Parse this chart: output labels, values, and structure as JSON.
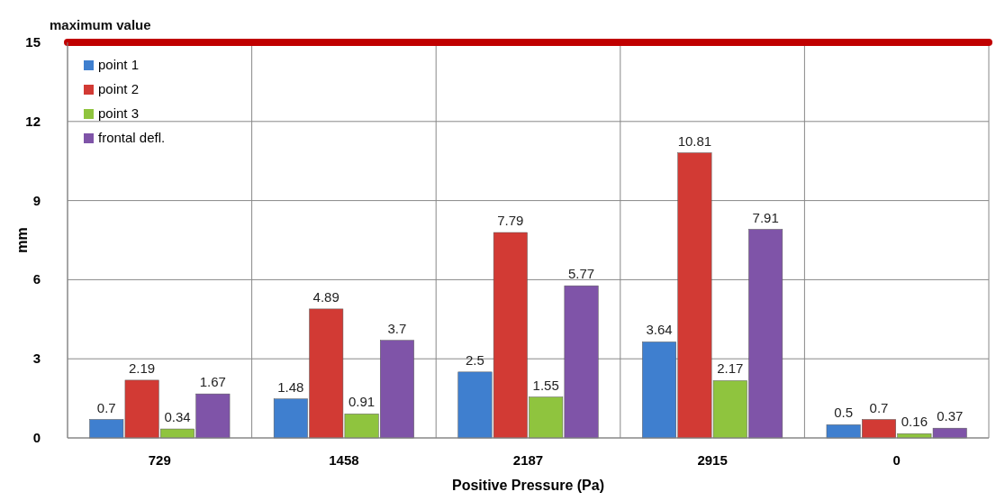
{
  "chart_data": {
    "type": "bar",
    "xlabel": "Positive Pressure (Pa)",
    "ylabel": "mm",
    "categories": [
      "729",
      "1458",
      "2187",
      "2915",
      "0"
    ],
    "series": [
      {
        "name": "point 1",
        "color": "#3f7fcf",
        "values": [
          0.7,
          1.48,
          2.5,
          3.64,
          0.5
        ]
      },
      {
        "name": "point 2",
        "color": "#d23a34",
        "values": [
          2.19,
          4.89,
          7.79,
          10.81,
          0.7
        ]
      },
      {
        "name": "point 3",
        "color": "#8fc43e",
        "values": [
          0.34,
          0.91,
          1.55,
          2.17,
          0.16
        ]
      },
      {
        "name": "frontal defl.",
        "color": "#7f54a8",
        "values": [
          1.67,
          3.7,
          5.77,
          7.91,
          0.37
        ]
      }
    ],
    "ylim": [
      0,
      15
    ],
    "yticks": [
      0,
      3,
      6,
      9,
      12,
      15
    ],
    "grid": true,
    "legend": "top left",
    "data_labels": true,
    "ref_lines": [
      {
        "axis": "y",
        "value": 15,
        "label": "maximum value",
        "color": "#c00000"
      }
    ]
  }
}
